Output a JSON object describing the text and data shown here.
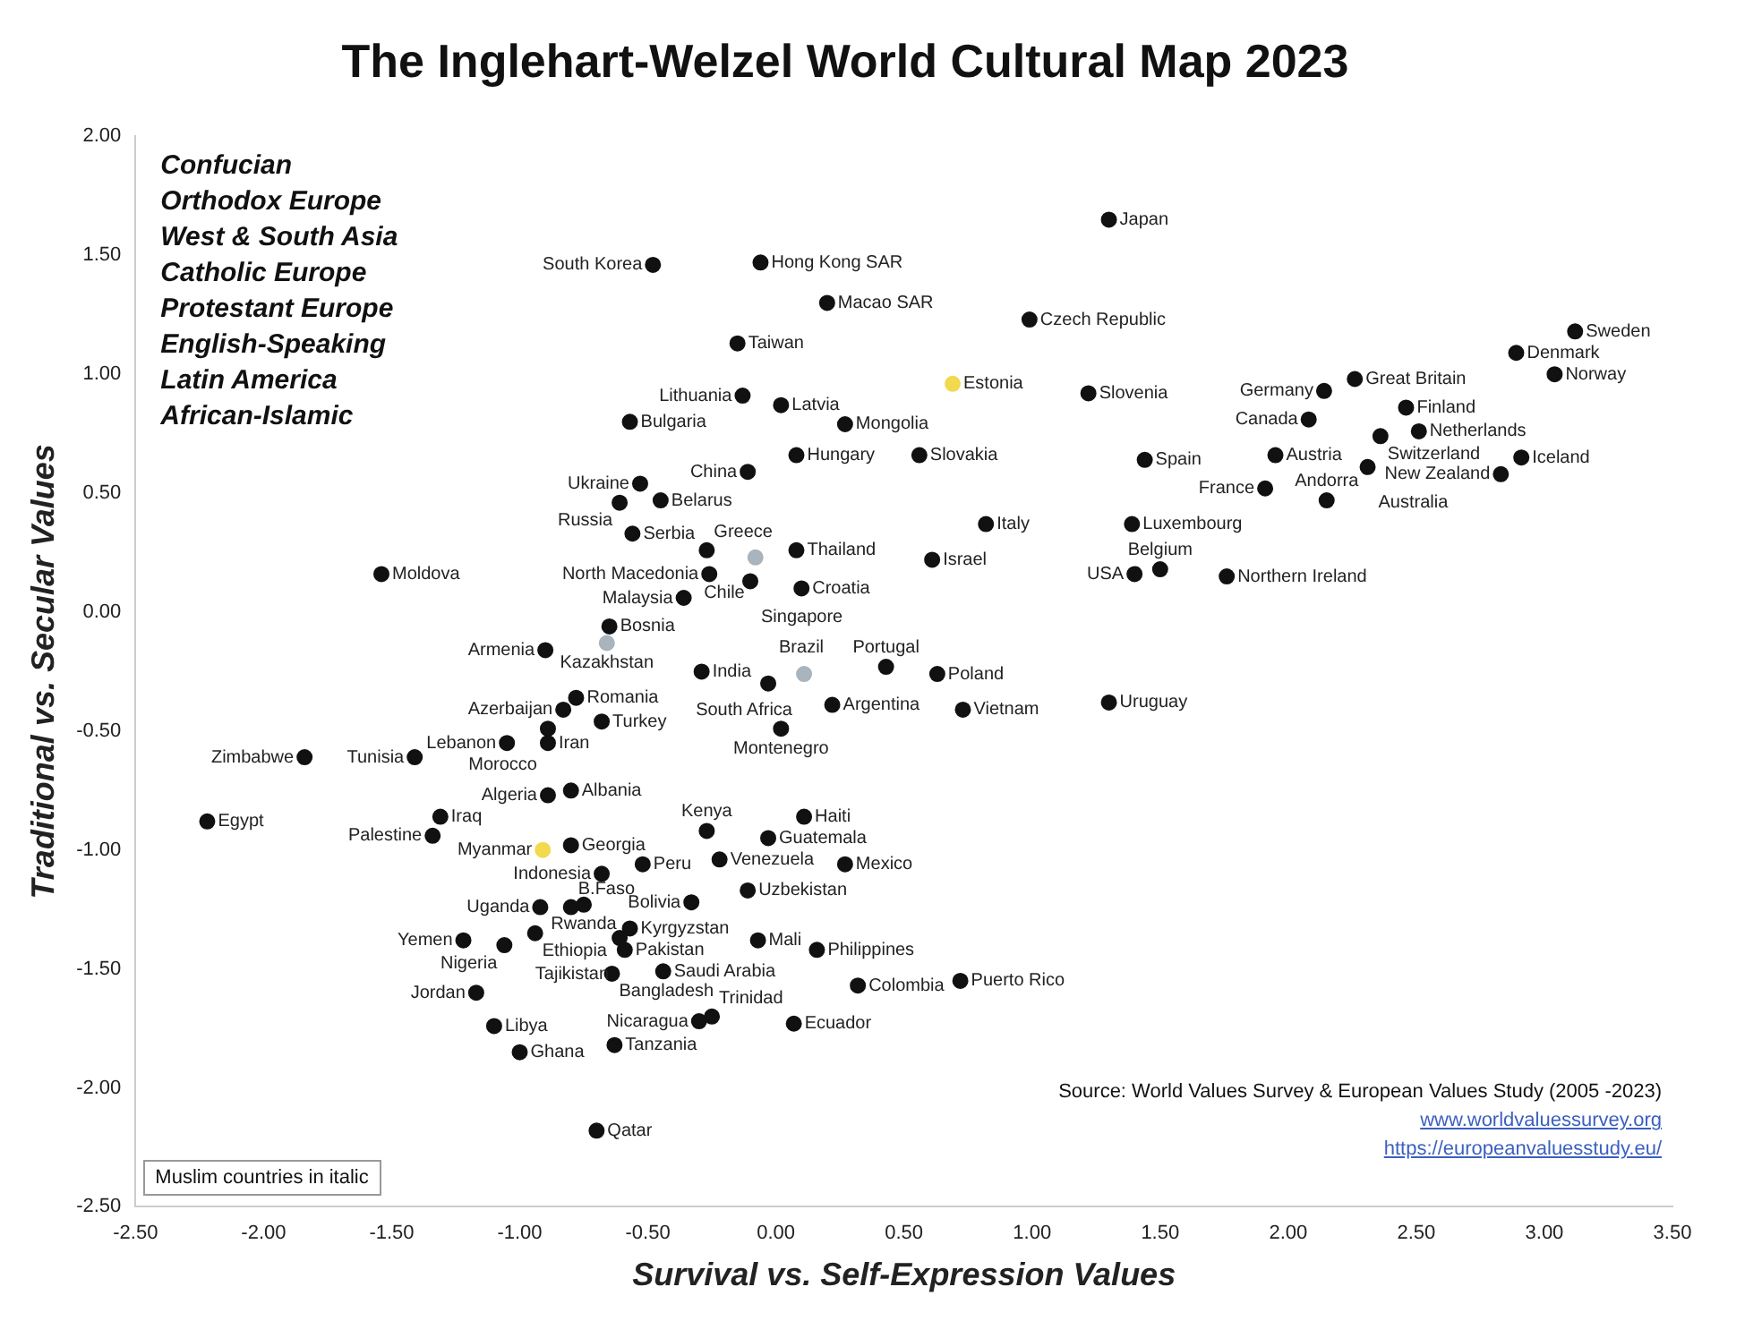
{
  "chart_data": {
    "type": "scatter",
    "title": "The Inglehart-Welzel World Cultural Map 2023",
    "xlabel": "Survival vs. Self-Expression Values",
    "ylabel": "Traditional vs. Secular Values",
    "xlim": [
      -2.5,
      3.5
    ],
    "ylim": [
      -2.5,
      2.0
    ],
    "xticks": [
      {
        "value": -2.5,
        "label": "-2.50"
      },
      {
        "value": -2,
        "label": "-2.00"
      },
      {
        "value": -1.5,
        "label": "-1.50"
      },
      {
        "value": -1,
        "label": "-1.00"
      },
      {
        "value": -0.5,
        "label": "-0.50"
      },
      {
        "value": 0,
        "label": "0.00"
      },
      {
        "value": 0.5,
        "label": "0.50"
      },
      {
        "value": 1,
        "label": "1.00"
      },
      {
        "value": 1.5,
        "label": "1.50"
      },
      {
        "value": 2,
        "label": "2.00"
      },
      {
        "value": 2.5,
        "label": "2.50"
      },
      {
        "value": 3,
        "label": "3.00"
      },
      {
        "value": 3.5,
        "label": "3.50"
      }
    ],
    "yticks": [
      {
        "value": -2.5,
        "label": "-2.50"
      },
      {
        "value": -2,
        "label": "-2.00"
      },
      {
        "value": -1.5,
        "label": "-1.50"
      },
      {
        "value": -1,
        "label": "-1.00"
      },
      {
        "value": -0.5,
        "label": "-0.50"
      },
      {
        "value": 0,
        "label": "0.00"
      },
      {
        "value": 0.5,
        "label": "0.50"
      },
      {
        "value": 1,
        "label": "1.00"
      },
      {
        "value": 1.5,
        "label": "1.50"
      },
      {
        "value": 2,
        "label": "2.00"
      }
    ],
    "grid": false,
    "legend": false,
    "marker": "circle",
    "x": [
      -0.48,
      -0.15,
      -0.57,
      -0.53,
      -0.45,
      -0.61,
      -0.56,
      -0.27,
      -0.26,
      -1.54,
      -0.36,
      -0.65,
      -0.66,
      -0.9,
      -0.29,
      -0.78,
      -0.06,
      0.2,
      1.3,
      0.99,
      -0.13,
      0.02,
      0.69,
      0.27,
      -0.11,
      0.08,
      0.56,
      1.22,
      1.44,
      1.95,
      1.91,
      0.82,
      1.39,
      1.5,
      1.4,
      1.76,
      0.08,
      -0.08,
      -0.1,
      0.1,
      0.61,
      0.43,
      0.63,
      0.11,
      -0.03,
      3.12,
      2.89,
      3.04,
      2.14,
      2.26,
      2.46,
      2.51,
      2.08,
      2.36,
      2.91,
      2.83,
      2.31,
      2.15,
      -0.83,
      -0.89,
      -0.68,
      -0.89,
      -1.05,
      -1.41,
      -1.84,
      -0.8,
      -0.89,
      -2.22,
      -1.31,
      -1.34,
      -0.91,
      -0.8,
      -0.68,
      -0.52,
      -0.27,
      -0.33,
      -0.92,
      -0.75,
      -0.8,
      -0.94,
      -0.57,
      -0.61,
      -0.59,
      -1.22,
      -1.06,
      -0.64,
      -0.44,
      -1.17,
      -1.1,
      -1.0,
      -0.63,
      -0.7,
      -0.3,
      -0.25,
      0.22,
      0.73,
      1.3,
      0.02,
      0.11,
      -0.03,
      -0.22,
      0.27,
      -0.11,
      -0.07,
      0.16,
      0.32,
      0.72,
      0.07
    ],
    "values": [
      1.46,
      1.13,
      0.8,
      0.54,
      0.47,
      0.46,
      0.33,
      0.26,
      0.16,
      0.16,
      0.06,
      -0.06,
      -0.13,
      -0.16,
      -0.25,
      -0.36,
      1.47,
      1.3,
      1.65,
      1.23,
      0.91,
      0.87,
      0.96,
      0.79,
      0.59,
      0.66,
      0.66,
      0.92,
      0.64,
      0.66,
      0.52,
      0.37,
      0.37,
      0.18,
      0.16,
      0.15,
      0.26,
      0.23,
      0.13,
      0.1,
      0.22,
      -0.23,
      -0.26,
      -0.26,
      -0.3,
      1.18,
      1.09,
      1.0,
      0.93,
      0.98,
      0.86,
      0.76,
      0.81,
      0.74,
      0.65,
      0.58,
      0.61,
      0.47,
      -0.41,
      -0.49,
      -0.46,
      -0.55,
      -0.55,
      -0.61,
      -0.61,
      -0.75,
      -0.77,
      -0.88,
      -0.86,
      -0.94,
      -1.0,
      -0.98,
      -1.1,
      -1.06,
      -0.92,
      -1.22,
      -1.24,
      -1.23,
      -1.24,
      -1.35,
      -1.33,
      -1.37,
      -1.42,
      -1.38,
      -1.4,
      -1.52,
      -1.51,
      -1.6,
      -1.74,
      -1.85,
      -1.82,
      -2.18,
      -1.72,
      -1.7,
      -0.39,
      -0.41,
      -0.38,
      -0.49,
      -0.86,
      -0.95,
      -1.04,
      -1.06,
      -1.17,
      -1.38,
      -1.42,
      -1.57,
      -1.55,
      -1.73
    ],
    "colors": [
      "#111111",
      "#111111",
      "#111111",
      "#111111",
      "#111111",
      "#111111",
      "#111111",
      "#111111",
      "#111111",
      "#111111",
      "#111111",
      "#111111",
      "#a9b4bd",
      "#111111",
      "#111111",
      "#111111",
      "#111111",
      "#111111",
      "#111111",
      "#111111",
      "#111111",
      "#111111",
      "#f2d94e",
      "#111111",
      "#111111",
      "#111111",
      "#111111",
      "#111111",
      "#111111",
      "#111111",
      "#111111",
      "#111111",
      "#111111",
      "#111111",
      "#111111",
      "#111111",
      "#111111",
      "#a9b4bd",
      "#111111",
      "#111111",
      "#111111",
      "#111111",
      "#111111",
      "#a9b4bd",
      "#111111",
      "#111111",
      "#111111",
      "#111111",
      "#111111",
      "#111111",
      "#111111",
      "#111111",
      "#111111",
      "#111111",
      "#111111",
      "#111111",
      "#111111",
      "#111111",
      "#111111",
      "#111111",
      "#111111",
      "#111111",
      "#111111",
      "#111111",
      "#111111",
      "#111111",
      "#111111",
      "#111111",
      "#111111",
      "#111111",
      "#f2d94e",
      "#111111",
      "#111111",
      "#111111",
      "#111111",
      "#111111",
      "#111111",
      "#111111",
      "#111111",
      "#111111",
      "#111111",
      "#111111",
      "#111111",
      "#111111",
      "#111111",
      "#111111",
      "#111111",
      "#111111",
      "#111111",
      "#111111",
      "#111111",
      "#111111",
      "#111111",
      "#111111",
      "#111111",
      "#111111",
      "#111111",
      "#111111",
      "#111111",
      "#111111",
      "#111111",
      "#111111",
      "#111111",
      "#111111",
      "#111111",
      "#111111",
      "#111111",
      "#111111"
    ],
    "annotations": [
      {
        "text": "South Korea",
        "x": -0.48,
        "y": 1.46
      },
      {
        "text": "Taiwan",
        "x": -0.15,
        "y": 1.13
      },
      {
        "text": "Bulgaria",
        "x": -0.57,
        "y": 0.8
      },
      {
        "text": "Ukraine",
        "x": -0.53,
        "y": 0.54
      },
      {
        "text": "Belarus",
        "x": -0.45,
        "y": 0.47
      },
      {
        "text": "Russia",
        "x": -0.61,
        "y": 0.46
      },
      {
        "text": "Serbia",
        "x": -0.56,
        "y": 0.33
      },
      {
        "text": "Greece",
        "x": -0.27,
        "y": 0.26
      },
      {
        "text": "North Macedonia",
        "x": -0.26,
        "y": 0.16
      },
      {
        "text": "Moldova",
        "x": -1.54,
        "y": 0.16
      },
      {
        "text": "Malaysia",
        "x": -0.36,
        "y": 0.06
      },
      {
        "text": "Bosnia",
        "x": -0.65,
        "y": -0.06
      },
      {
        "text": "Kazakhstan",
        "x": -0.66,
        "y": -0.13
      },
      {
        "text": "Armenia",
        "x": -0.9,
        "y": -0.16
      },
      {
        "text": "India",
        "x": -0.29,
        "y": -0.25
      },
      {
        "text": "Romania",
        "x": -0.78,
        "y": -0.36
      },
      {
        "text": "Hong Kong SAR",
        "x": -0.06,
        "y": 1.47
      },
      {
        "text": "Macao SAR",
        "x": 0.2,
        "y": 1.3
      },
      {
        "text": "Japan",
        "x": 1.3,
        "y": 1.65
      },
      {
        "text": "Czech Republic",
        "x": 0.99,
        "y": 1.23
      },
      {
        "text": "Lithuania",
        "x": -0.13,
        "y": 0.91
      },
      {
        "text": "Latvia",
        "x": 0.02,
        "y": 0.87
      },
      {
        "text": "Estonia",
        "x": 0.69,
        "y": 0.96
      },
      {
        "text": "Mongolia",
        "x": 0.27,
        "y": 0.79
      },
      {
        "text": "China",
        "x": -0.11,
        "y": 0.59
      },
      {
        "text": "Hungary",
        "x": 0.08,
        "y": 0.66
      },
      {
        "text": "Slovakia",
        "x": 0.56,
        "y": 0.66
      },
      {
        "text": "Slovenia",
        "x": 1.22,
        "y": 0.92
      },
      {
        "text": "Spain",
        "x": 1.44,
        "y": 0.64
      },
      {
        "text": "Austria",
        "x": 1.95,
        "y": 0.66
      },
      {
        "text": "France",
        "x": 1.91,
        "y": 0.52
      },
      {
        "text": "Italy",
        "x": 0.82,
        "y": 0.37
      },
      {
        "text": "Luxembourg",
        "x": 1.39,
        "y": 0.37
      },
      {
        "text": "Belgium",
        "x": 1.5,
        "y": 0.18
      },
      {
        "text": "USA",
        "x": 1.4,
        "y": 0.16
      },
      {
        "text": "Northern Ireland",
        "x": 1.76,
        "y": 0.15
      },
      {
        "text": "Thailand",
        "x": 0.08,
        "y": 0.26
      },
      {
        "text": "Chile",
        "x": -0.08,
        "y": 0.23
      },
      {
        "text": "Singapore",
        "x": -0.1,
        "y": 0.13
      },
      {
        "text": "Croatia",
        "x": 0.1,
        "y": 0.1
      },
      {
        "text": "Israel",
        "x": 0.61,
        "y": 0.22
      },
      {
        "text": "Portugal",
        "x": 0.43,
        "y": -0.23
      },
      {
        "text": "Poland",
        "x": 0.63,
        "y": -0.26
      },
      {
        "text": "South Africa",
        "x": 0.11,
        "y": -0.26
      },
      {
        "text": "Brazil",
        "x": -0.03,
        "y": -0.3
      },
      {
        "text": "Sweden",
        "x": 3.12,
        "y": 1.18
      },
      {
        "text": "Denmark",
        "x": 2.89,
        "y": 1.09
      },
      {
        "text": "Norway",
        "x": 3.04,
        "y": 1.0
      },
      {
        "text": "Germany",
        "x": 2.14,
        "y": 0.93
      },
      {
        "text": "Great Britain",
        "x": 2.26,
        "y": 0.98
      },
      {
        "text": "Finland",
        "x": 2.46,
        "y": 0.86
      },
      {
        "text": "Netherlands",
        "x": 2.51,
        "y": 0.76
      },
      {
        "text": "Canada",
        "x": 2.08,
        "y": 0.81
      },
      {
        "text": "Switzerland",
        "x": 2.36,
        "y": 0.74
      },
      {
        "text": "Iceland",
        "x": 2.91,
        "y": 0.65
      },
      {
        "text": "New Zealand",
        "x": 2.83,
        "y": 0.58
      },
      {
        "text": "Australia",
        "x": 2.31,
        "y": 0.61
      },
      {
        "text": "Andorra",
        "x": 2.15,
        "y": 0.47
      },
      {
        "text": "Azerbaijan",
        "x": -0.83,
        "y": -0.41
      },
      {
        "text": "Morocco",
        "x": -0.89,
        "y": -0.49
      },
      {
        "text": "Turkey",
        "x": -0.68,
        "y": -0.46
      },
      {
        "text": "Iran",
        "x": -0.89,
        "y": -0.55
      },
      {
        "text": "Lebanon",
        "x": -1.05,
        "y": -0.55
      },
      {
        "text": "Tunisia",
        "x": -1.41,
        "y": -0.61
      },
      {
        "text": "Zimbabwe",
        "x": -1.84,
        "y": -0.61
      },
      {
        "text": "Albania",
        "x": -0.8,
        "y": -0.75
      },
      {
        "text": "Algeria",
        "x": -0.89,
        "y": -0.77
      },
      {
        "text": "Egypt",
        "x": -2.22,
        "y": -0.88
      },
      {
        "text": "Iraq",
        "x": -1.31,
        "y": -0.86
      },
      {
        "text": "Palestine",
        "x": -1.34,
        "y": -0.94
      },
      {
        "text": "Myanmar",
        "x": -0.91,
        "y": -1.0
      },
      {
        "text": "Georgia",
        "x": -0.8,
        "y": -0.98
      },
      {
        "text": "Indonesia",
        "x": -0.68,
        "y": -1.1
      },
      {
        "text": "Peru",
        "x": -0.52,
        "y": -1.06
      },
      {
        "text": "Kenya",
        "x": -0.27,
        "y": -0.92
      },
      {
        "text": "Bolivia",
        "x": -0.33,
        "y": -1.22
      },
      {
        "text": "Uganda",
        "x": -0.92,
        "y": -1.24
      },
      {
        "text": "Rwanda",
        "x": -0.75,
        "y": -1.23
      },
      {
        "text": "B.Faso",
        "x": -0.8,
        "y": -1.24
      },
      {
        "text": "Ethiopia",
        "x": -0.94,
        "y": -1.35
      },
      {
        "text": "Kyrgyzstan",
        "x": -0.57,
        "y": -1.33
      },
      {
        "text": "Tajikistan",
        "x": -0.61,
        "y": -1.37
      },
      {
        "text": "Pakistan",
        "x": -0.59,
        "y": -1.42
      },
      {
        "text": "Yemen",
        "x": -1.22,
        "y": -1.38
      },
      {
        "text": "Nigeria",
        "x": -1.06,
        "y": -1.4
      },
      {
        "text": "Bangladesh",
        "x": -0.64,
        "y": -1.52
      },
      {
        "text": "Saudi Arabia",
        "x": -0.44,
        "y": -1.51
      },
      {
        "text": "Jordan",
        "x": -1.17,
        "y": -1.6
      },
      {
        "text": "Libya",
        "x": -1.1,
        "y": -1.74
      },
      {
        "text": "Ghana",
        "x": -1.0,
        "y": -1.85
      },
      {
        "text": "Tanzania",
        "x": -0.63,
        "y": -1.82
      },
      {
        "text": "Qatar",
        "x": -0.7,
        "y": -2.18
      },
      {
        "text": "Nicaragua",
        "x": -0.3,
        "y": -1.72
      },
      {
        "text": "Trinidad",
        "x": -0.25,
        "y": -1.7
      },
      {
        "text": "Argentina",
        "x": 0.22,
        "y": -0.39
      },
      {
        "text": "Vietnam",
        "x": 0.73,
        "y": -0.41
      },
      {
        "text": "Uruguay",
        "x": 1.3,
        "y": -0.38
      },
      {
        "text": "Montenegro",
        "x": 0.02,
        "y": -0.49
      },
      {
        "text": "Haiti",
        "x": 0.11,
        "y": -0.86
      },
      {
        "text": "Guatemala",
        "x": -0.03,
        "y": -0.95
      },
      {
        "text": "Venezuela",
        "x": -0.22,
        "y": -1.04
      },
      {
        "text": "Mexico",
        "x": 0.27,
        "y": -1.06
      },
      {
        "text": "Uzbekistan",
        "x": -0.11,
        "y": -1.17
      },
      {
        "text": "Mali",
        "x": -0.07,
        "y": -1.38
      },
      {
        "text": "Philippines",
        "x": 0.16,
        "y": -1.42
      },
      {
        "text": "Colombia",
        "x": 0.32,
        "y": -1.57
      },
      {
        "text": "Puerto Rico",
        "x": 0.72,
        "y": -1.55
      },
      {
        "text": "Ecuador",
        "x": 0.07,
        "y": -1.73
      },
      "Confucian",
      "Orthodox Europe",
      "West & South Asia",
      "Catholic Europe",
      "Protestant Europe",
      "English-Speaking",
      "Latin America",
      "African-Islamic",
      "Muslim countries in italic",
      "Source: World Values Survey & European Values Study (2005 -2023)",
      "www.worldvaluessurvey.org",
      "https://europeanvaluesstudy.eu/"
    ]
  }
}
